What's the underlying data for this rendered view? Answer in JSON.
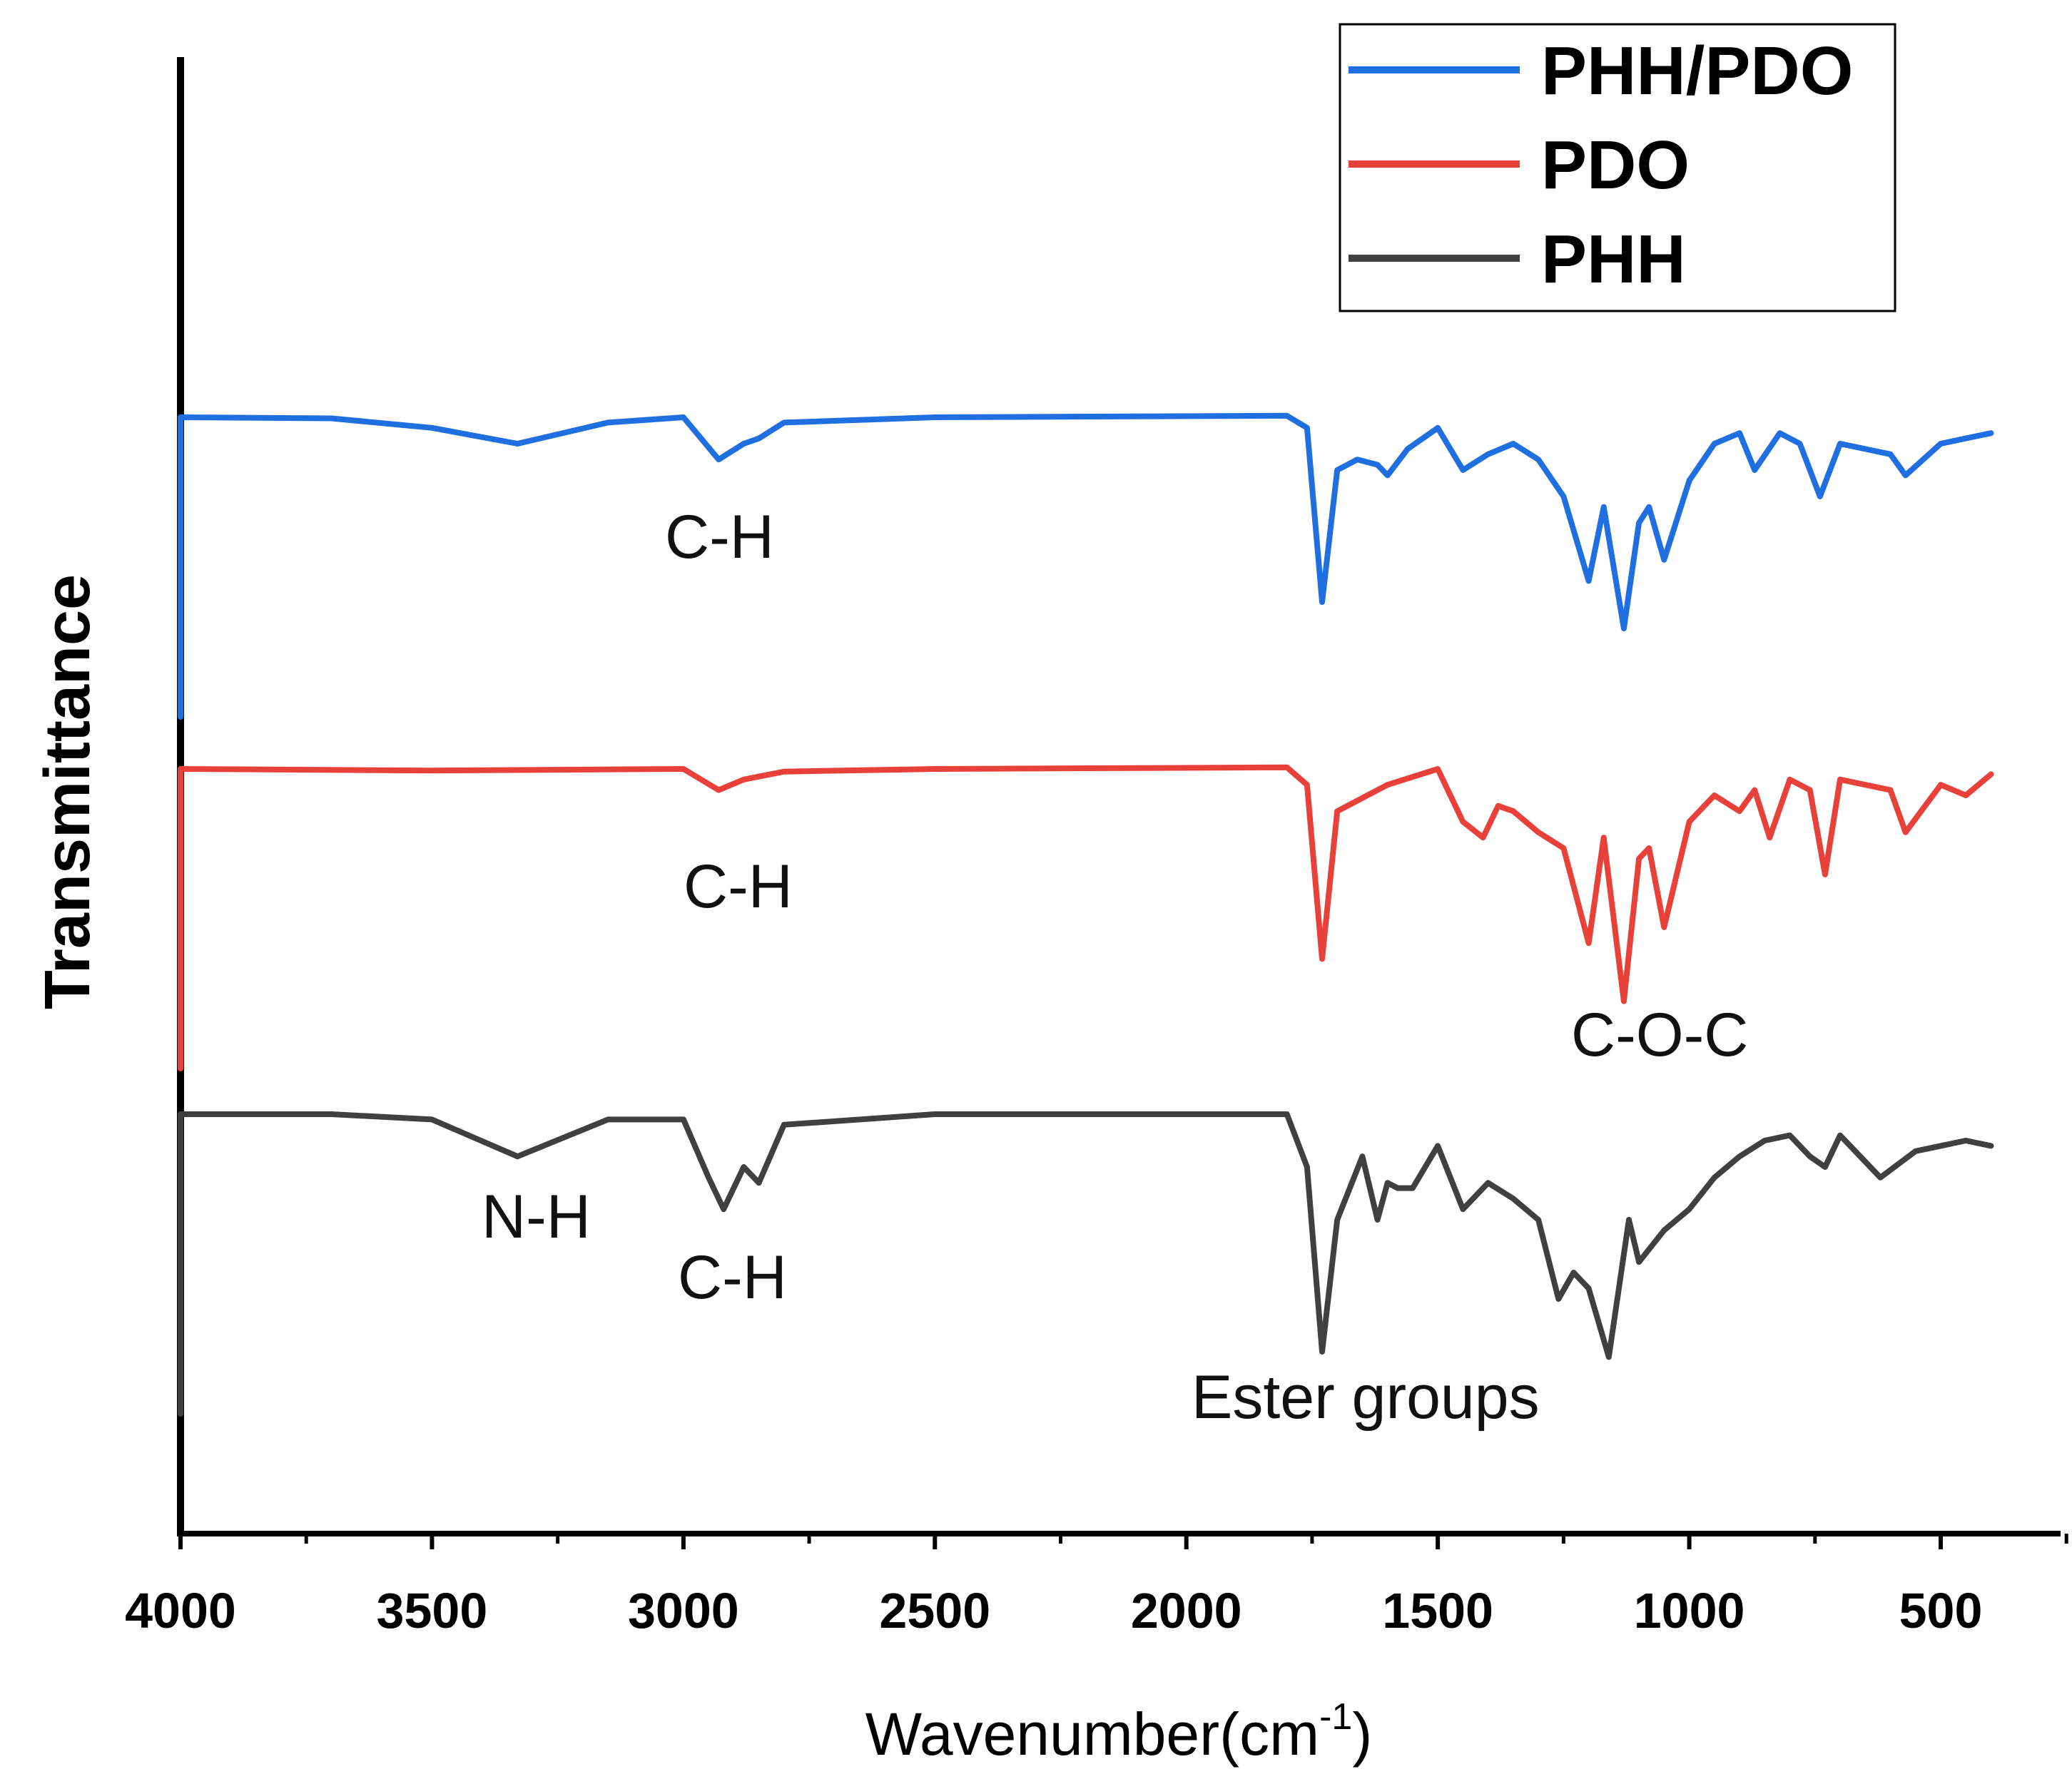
{
  "chart_data": {
    "type": "line",
    "title": "",
    "xlabel": "Wavenumber(cm",
    "xlabel_superscript": "-1",
    "xlabel_suffix": ")",
    "ylabel": "Transmittance",
    "xlim": [
      4000,
      300
    ],
    "x_ticks": [
      4000,
      3500,
      3000,
      2500,
      2000,
      1500,
      1000,
      500
    ],
    "x_tick_labels": [
      "4000",
      "3500",
      "3000",
      "2500",
      "2000",
      "1500",
      "1000",
      "500"
    ],
    "y_ticks_shown": false,
    "legend_position": "top-right",
    "series": [
      {
        "name": "PHH/PDO",
        "color": "#1f6fe0",
        "points": [
          [
            4000,
            0
          ],
          [
            3700,
            0.2
          ],
          [
            3500,
            2
          ],
          [
            3330,
            5
          ],
          [
            3150,
            1
          ],
          [
            3000,
            0
          ],
          [
            2930,
            8
          ],
          [
            2880,
            5
          ],
          [
            2850,
            4
          ],
          [
            2800,
            1
          ],
          [
            2500,
            0
          ],
          [
            1800,
            -0.3
          ],
          [
            1760,
            2
          ],
          [
            1730,
            35
          ],
          [
            1700,
            10
          ],
          [
            1660,
            8
          ],
          [
            1620,
            9
          ],
          [
            1600,
            11
          ],
          [
            1560,
            6
          ],
          [
            1500,
            2
          ],
          [
            1450,
            10
          ],
          [
            1400,
            7
          ],
          [
            1350,
            5
          ],
          [
            1300,
            8
          ],
          [
            1250,
            15
          ],
          [
            1200,
            31
          ],
          [
            1170,
            17
          ],
          [
            1130,
            40
          ],
          [
            1100,
            20
          ],
          [
            1080,
            17
          ],
          [
            1050,
            27
          ],
          [
            1000,
            12
          ],
          [
            950,
            5
          ],
          [
            900,
            3
          ],
          [
            870,
            10
          ],
          [
            820,
            3
          ],
          [
            780,
            5
          ],
          [
            740,
            15
          ],
          [
            700,
            5
          ],
          [
            600,
            7
          ],
          [
            570,
            11
          ],
          [
            500,
            5
          ],
          [
            450,
            4
          ],
          [
            400,
            3
          ]
        ]
      },
      {
        "name": "PDO",
        "color": "#e8413a",
        "points": [
          [
            4000,
            0
          ],
          [
            3500,
            0.3
          ],
          [
            3000,
            0
          ],
          [
            2930,
            4
          ],
          [
            2880,
            2
          ],
          [
            2800,
            0.5
          ],
          [
            2500,
            0
          ],
          [
            1800,
            -0.3
          ],
          [
            1760,
            3
          ],
          [
            1730,
            36
          ],
          [
            1700,
            8
          ],
          [
            1660,
            6
          ],
          [
            1600,
            3
          ],
          [
            1500,
            0
          ],
          [
            1450,
            10
          ],
          [
            1410,
            13
          ],
          [
            1380,
            7
          ],
          [
            1350,
            8
          ],
          [
            1300,
            12
          ],
          [
            1250,
            15
          ],
          [
            1200,
            33
          ],
          [
            1170,
            13
          ],
          [
            1130,
            44
          ],
          [
            1100,
            17
          ],
          [
            1080,
            15
          ],
          [
            1050,
            30
          ],
          [
            1000,
            10
          ],
          [
            950,
            5
          ],
          [
            900,
            8
          ],
          [
            870,
            4
          ],
          [
            840,
            13
          ],
          [
            800,
            2
          ],
          [
            760,
            4
          ],
          [
            730,
            20
          ],
          [
            700,
            2
          ],
          [
            600,
            4
          ],
          [
            570,
            12
          ],
          [
            500,
            3
          ],
          [
            450,
            5
          ],
          [
            400,
            1
          ]
        ]
      },
      {
        "name": "PHH",
        "color": "#404040",
        "points": [
          [
            4000,
            0
          ],
          [
            3700,
            0
          ],
          [
            3500,
            1
          ],
          [
            3330,
            8
          ],
          [
            3150,
            1
          ],
          [
            3000,
            1
          ],
          [
            2950,
            12
          ],
          [
            2920,
            18
          ],
          [
            2880,
            10
          ],
          [
            2850,
            13
          ],
          [
            2800,
            2
          ],
          [
            2500,
            0
          ],
          [
            1800,
            0
          ],
          [
            1760,
            10
          ],
          [
            1730,
            45
          ],
          [
            1700,
            20
          ],
          [
            1650,
            8
          ],
          [
            1620,
            20
          ],
          [
            1600,
            13
          ],
          [
            1580,
            14
          ],
          [
            1550,
            14
          ],
          [
            1500,
            6
          ],
          [
            1450,
            18
          ],
          [
            1400,
            13
          ],
          [
            1350,
            16
          ],
          [
            1300,
            20
          ],
          [
            1260,
            35
          ],
          [
            1230,
            30
          ],
          [
            1200,
            33
          ],
          [
            1160,
            46
          ],
          [
            1120,
            20
          ],
          [
            1100,
            28
          ],
          [
            1050,
            22
          ],
          [
            1000,
            18
          ],
          [
            950,
            12
          ],
          [
            900,
            8
          ],
          [
            850,
            5
          ],
          [
            800,
            4
          ],
          [
            760,
            8
          ],
          [
            730,
            10
          ],
          [
            700,
            4
          ],
          [
            620,
            12
          ],
          [
            550,
            7
          ],
          [
            500,
            6
          ],
          [
            450,
            5
          ],
          [
            400,
            6
          ]
        ]
      }
    ],
    "annotations": [
      "C-H",
      "C-H",
      "C-O-C",
      "N-H",
      "C-H",
      "Ester groups"
    ]
  }
}
